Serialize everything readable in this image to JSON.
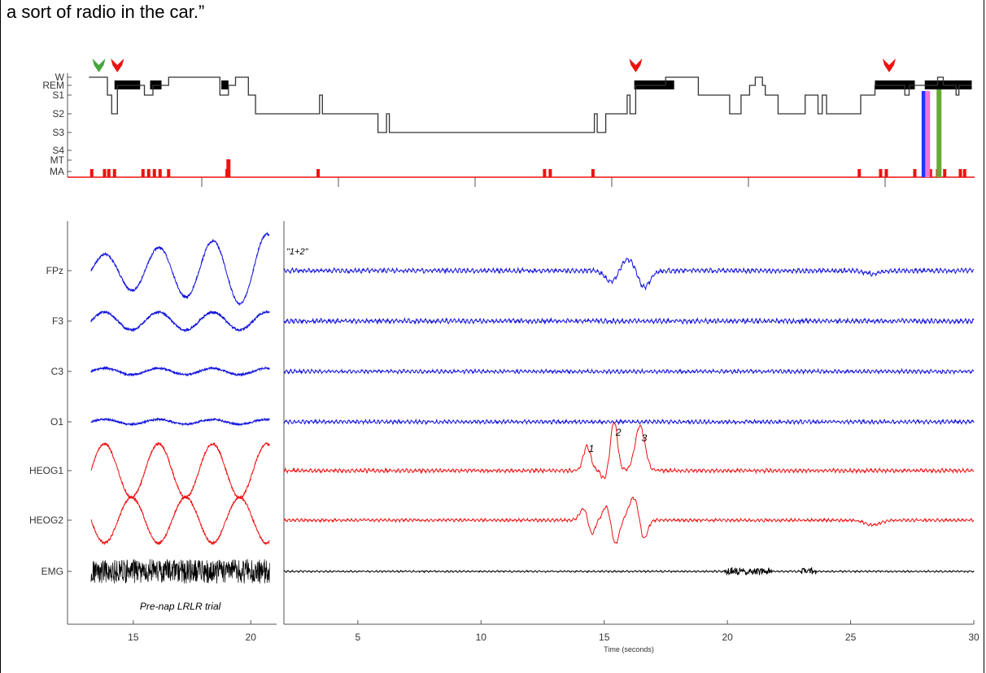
{
  "caption": "a sort of radio in the car.”",
  "chart_data": [
    {
      "type": "line",
      "subtype": "hypnogram",
      "stage_labels": [
        "W",
        "REM",
        "S1",
        "S2",
        "S3",
        "S4",
        "MT",
        "MA"
      ],
      "stage_sequence": [
        [
          "W",
          0.0
        ],
        [
          "S1",
          1.3
        ],
        [
          "S2",
          1.6
        ],
        [
          "REM",
          2.0
        ],
        [
          "S1",
          3.9
        ],
        [
          "REM",
          4.5
        ],
        [
          "W",
          5.6
        ],
        [
          "S1",
          9.2
        ],
        [
          "REM",
          9.8
        ],
        [
          "W",
          10.3
        ],
        [
          "S1",
          11.2
        ],
        [
          "S2",
          11.7
        ],
        [
          "S1",
          16.2
        ],
        [
          "S2",
          16.4
        ],
        [
          "S3",
          20.3
        ],
        [
          "S2",
          20.9
        ],
        [
          "S3",
          21.1
        ],
        [
          "S2",
          35.5
        ],
        [
          "S3",
          35.7
        ],
        [
          "S2",
          36.3
        ],
        [
          "S1",
          37.8
        ],
        [
          "S2",
          38.0
        ],
        [
          "REM",
          38.4
        ],
        [
          "W",
          40.5
        ],
        [
          "S1",
          42.8
        ],
        [
          "S2",
          45.0
        ],
        [
          "S1",
          45.8
        ],
        [
          "REM",
          46.4
        ],
        [
          "W",
          46.8
        ],
        [
          "REM",
          47.3
        ],
        [
          "S1",
          47.5
        ],
        [
          "S2",
          48.4
        ],
        [
          "S1",
          50.3
        ],
        [
          "S2",
          51.2
        ],
        [
          "S1",
          51.5
        ],
        [
          "S2",
          51.8
        ],
        [
          "S1",
          54.2
        ],
        [
          "REM",
          55.2
        ],
        [
          "S1",
          57.3
        ],
        [
          "REM",
          57.6
        ],
        [
          "W",
          59.6
        ],
        [
          "REM",
          60.0
        ],
        [
          "S1",
          60.9
        ],
        [
          "REM",
          61.1
        ],
        [
          "end",
          62.0
        ]
      ],
      "rem_periods": [
        [
          1.8,
          3.6
        ],
        [
          4.3,
          5.1
        ],
        [
          9.3,
          9.8
        ],
        [
          38.3,
          41.1
        ],
        [
          55.2,
          58.0
        ],
        [
          58.7,
          62.0
        ]
      ],
      "arousal_markers": [
        0.2,
        1.1,
        1.4,
        1.8,
        3.8,
        4.2,
        4.6,
        5.0,
        5.6,
        9.7,
        16.1,
        32.0,
        32.4,
        35.4,
        54.1,
        55.6,
        56.0,
        58.0,
        58.6,
        59.1,
        59.6,
        60.1,
        61.2,
        61.5
      ],
      "movement_time_marker": 9.8,
      "arrows": [
        {
          "color": "#44a63b",
          "x": 0.7
        },
        {
          "color": "#ee1111",
          "x": 2.0
        },
        {
          "color": "#ee1111",
          "x": 38.4
        },
        {
          "color": "#ee1111",
          "x": 56.2
        }
      ],
      "highlight_bars": [
        {
          "color": "#2233ff",
          "x": 58.65
        },
        {
          "color": "#ee77cc",
          "x": 58.9
        },
        {
          "color": "#66aa33",
          "x": 59.7
        }
      ],
      "xlim": [
        -1.5,
        62.2
      ]
    },
    {
      "type": "line",
      "subtype": "polysomnography traces",
      "channels": [
        {
          "label": "FPz",
          "color": "#1111dd"
        },
        {
          "label": "F3",
          "color": "#1111dd"
        },
        {
          "label": "C3",
          "color": "#1111dd"
        },
        {
          "label": "O1",
          "color": "#1111dd"
        },
        {
          "label": "HEOG1",
          "color": "#ee1111"
        },
        {
          "label": "HEOG2",
          "color": "#ee1111"
        },
        {
          "label": "EMG",
          "color": "#000000"
        }
      ],
      "left_panel": {
        "caption": "Pre-nap LRLR trial",
        "xlim": [
          12.2,
          21.1
        ],
        "xticks": [
          15,
          20
        ],
        "trace_range": [
          13.2,
          20.8
        ]
      },
      "right_panel": {
        "annotation": "\"1+2\"",
        "xlabel": "Time (seconds)",
        "xlim": [
          2,
          30
        ],
        "xticks": [
          5,
          10,
          15,
          20,
          25,
          30
        ],
        "eye_movements": [
          {
            "label": "1",
            "time": 14.3
          },
          {
            "label": "2",
            "time": 15.4
          },
          {
            "label": "3",
            "time": 16.45
          }
        ]
      }
    }
  ]
}
